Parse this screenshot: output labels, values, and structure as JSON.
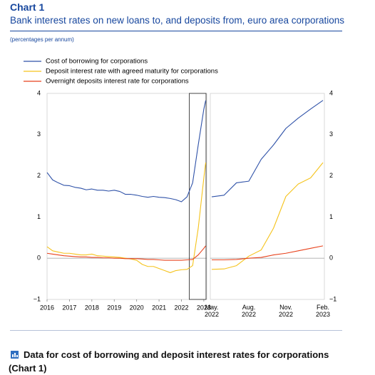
{
  "header": {
    "label": "Chart 1",
    "title": "Bank interest rates on new loans to, and deposits from, euro area corporations",
    "unit": "(percentages per annum)"
  },
  "chart_data": [
    {
      "type": "line",
      "x": [
        2016.0,
        2016.25,
        2016.5,
        2016.75,
        2017.0,
        2017.25,
        2017.5,
        2017.75,
        2018.0,
        2018.25,
        2018.5,
        2018.75,
        2019.0,
        2019.25,
        2019.5,
        2019.75,
        2020.0,
        2020.25,
        2020.5,
        2020.75,
        2021.0,
        2021.25,
        2021.5,
        2021.75,
        2022.0,
        2022.25,
        2022.5,
        2022.75,
        2023.0,
        2023.083
      ],
      "xlim": [
        2016,
        2023.13
      ],
      "xticks": [
        2016,
        2017,
        2018,
        2019,
        2020,
        2021,
        2022,
        2023
      ],
      "ylim": [
        -1,
        4
      ],
      "yticks": [
        {
          "value": -1,
          "label": "−1"
        },
        0,
        1,
        2,
        3,
        4
      ],
      "series": [
        {
          "name": "Cost of borrowing for corporations",
          "color": "#2f52a8",
          "values": [
            2.08,
            1.9,
            1.83,
            1.77,
            1.76,
            1.72,
            1.7,
            1.66,
            1.68,
            1.65,
            1.65,
            1.63,
            1.65,
            1.62,
            1.55,
            1.55,
            1.53,
            1.5,
            1.48,
            1.5,
            1.48,
            1.47,
            1.45,
            1.42,
            1.37,
            1.49,
            1.83,
            2.75,
            3.62,
            3.83
          ]
        },
        {
          "name": "Deposit interest rate with agreed maturity for corporations",
          "color": "#f5c31c",
          "values": [
            0.28,
            0.18,
            0.15,
            0.12,
            0.12,
            0.1,
            0.08,
            0.08,
            0.1,
            0.06,
            0.05,
            0.04,
            0.03,
            0.02,
            0.0,
            -0.02,
            -0.05,
            -0.15,
            -0.2,
            -0.2,
            -0.25,
            -0.3,
            -0.35,
            -0.3,
            -0.28,
            -0.27,
            -0.18,
            0.73,
            1.95,
            2.32
          ]
        },
        {
          "name": "Overnight deposits interest rate for corporations",
          "color": "#e8421c",
          "values": [
            0.12,
            0.1,
            0.08,
            0.06,
            0.05,
            0.04,
            0.03,
            0.03,
            0.02,
            0.02,
            0.01,
            0.01,
            0.0,
            0.0,
            -0.01,
            -0.01,
            -0.01,
            -0.02,
            -0.03,
            -0.03,
            -0.04,
            -0.05,
            -0.05,
            -0.05,
            -0.05,
            -0.04,
            -0.03,
            0.08,
            0.24,
            0.3
          ]
        }
      ]
    },
    {
      "type": "line",
      "categories": [
        "May. 2022",
        null,
        null,
        "Aug. 2022",
        null,
        null,
        "Nov. 2022",
        null,
        null,
        "Feb. 2023"
      ],
      "ylim": [
        -1,
        4
      ],
      "yticks": [
        {
          "value": -1,
          "label": "−1"
        },
        0,
        1,
        2,
        3,
        4
      ],
      "series": [
        {
          "color": "#2f52a8",
          "values": [
            1.49,
            1.53,
            1.83,
            1.87,
            2.4,
            2.75,
            3.15,
            3.4,
            3.62,
            3.83
          ]
        },
        {
          "color": "#f5c31c",
          "values": [
            -0.27,
            -0.26,
            -0.18,
            0.05,
            0.2,
            0.73,
            1.5,
            1.8,
            1.95,
            2.32
          ]
        },
        {
          "color": "#e8421c",
          "values": [
            -0.04,
            -0.04,
            -0.03,
            0.0,
            0.02,
            0.08,
            0.12,
            0.18,
            0.24,
            0.3
          ]
        }
      ]
    }
  ],
  "footer": {
    "link": "Data for cost of borrowing and deposit interest rates for corporations (Chart 1)"
  }
}
